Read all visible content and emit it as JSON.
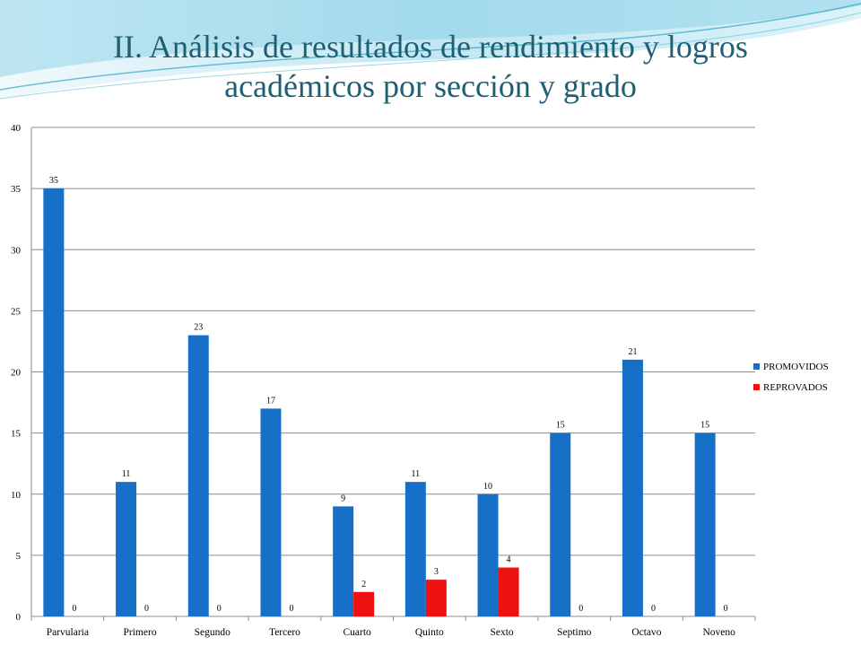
{
  "slide": {
    "title_line1": "II. Análisis de resultados de rendimiento y logros",
    "title_line2": "académicos por sección y grado"
  },
  "colors": {
    "title": "#1f5f73",
    "promovidos": "#1670c8",
    "reprovados": "#ee1111",
    "gridline": "#8c8c8c",
    "decoration": "#46b8d6"
  },
  "chart_data": {
    "type": "bar",
    "categories": [
      "Parvularia",
      "Primero",
      "Segundo",
      "Tercero",
      "Cuarto",
      "Quinto",
      "Sexto",
      "Septimo",
      "Octavo",
      "Noveno"
    ],
    "series": [
      {
        "name": "PROMOVIDOS",
        "color": "#1670c8",
        "values": [
          35,
          11,
          23,
          17,
          9,
          11,
          10,
          15,
          21,
          15
        ]
      },
      {
        "name": "REPROVADOS",
        "color": "#ee1111",
        "values": [
          0,
          0,
          0,
          0,
          2,
          3,
          4,
          0,
          0,
          0
        ]
      }
    ],
    "ylim": [
      0,
      40
    ],
    "yticks": [
      "0",
      "5",
      "10",
      "15",
      "20",
      "25",
      "30",
      "35",
      "40"
    ],
    "grid": true,
    "legend_position": "right",
    "data_labels": true
  }
}
